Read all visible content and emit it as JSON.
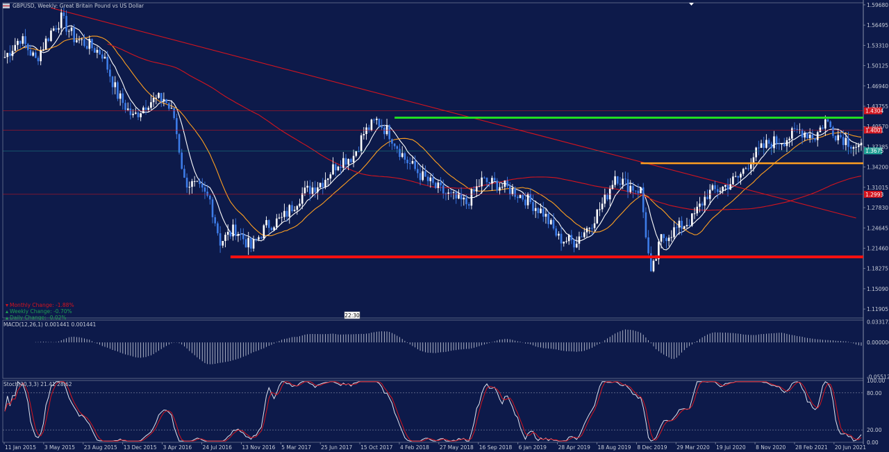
{
  "chart_data": {
    "type": "candlestick",
    "title": "GBPUSD, Weekly: Great Britain Pound vs US Dollar",
    "symbol_icon": "flag-icon",
    "main_panel": {
      "y_ticks": [
        "1.59680",
        "1.56495",
        "1.53310",
        "1.50125",
        "1.46940",
        "1.43755",
        "1.40570",
        "1.37385",
        "1.34200",
        "1.31015",
        "1.27830",
        "1.24645",
        "1.21460",
        "1.18275",
        "1.15090",
        "1.11905"
      ],
      "ylim": [
        1.105,
        1.6
      ],
      "price_tags": [
        {
          "text": "1.4304",
          "value": 1.4304,
          "color": "#d4141e"
        },
        {
          "text": "1.4001",
          "value": 1.4001,
          "color": "#d4141e"
        },
        {
          "text": "1.3675",
          "value": 1.3675,
          "color": "#1f9e94"
        },
        {
          "text": "1.2993",
          "value": 1.2993,
          "color": "#d4141e"
        }
      ],
      "support_line": {
        "value": 1.201,
        "color": "#ff1010"
      },
      "resistance_line": {
        "value": 1.4195,
        "color": "#22dd22"
      },
      "mid_line": {
        "value": 1.348,
        "color": "#ffa020"
      },
      "legend": [
        {
          "text": "Monthly Change: -1.88%",
          "color": "#d4141e",
          "marker": "down"
        },
        {
          "text": "Weekly Change: -0.70%",
          "color": "#1f9e54",
          "marker": "up"
        },
        {
          "text": "Daily Change: -0.02%",
          "color": "#1f9e54",
          "marker": "up"
        }
      ],
      "time_label": "22:30",
      "series": [
        {
          "name": "",
          "color": "#ffffff",
          "type": "sma"
        },
        {
          "name": "",
          "color": "#ffa020",
          "type": "sma"
        },
        {
          "name": "",
          "color": "#d4141e",
          "type": "sma"
        }
      ]
    },
    "macd_panel": {
      "label": "MACD(12,26,1) 0.001441 0.001441",
      "y_ticks": [
        "0.033172",
        "0.000000",
        "-0.055123"
      ],
      "ylim": [
        -0.058,
        0.036
      ]
    },
    "stoch_panel": {
      "label": "Stoch(20,3,3) 21.41 28.62",
      "y_ticks": [
        "100.00",
        "80.00",
        "20.00",
        "0.00"
      ],
      "ylim": [
        0,
        100
      ],
      "levels": [
        80,
        20
      ]
    },
    "x_ticks": [
      "11 Jan 2015",
      "3 May 2015",
      "23 Aug 2015",
      "13 Dec 2015",
      "3 Apr 2016",
      "24 Jul 2016",
      "13 Nov 2016",
      "5 Mar 2017",
      "25 Jun 2017",
      "15 Oct 2017",
      "4 Feb 2018",
      "27 May 2018",
      "16 Sep 2018",
      "6 Jan 2019",
      "28 Apr 2019",
      "18 Aug 2019",
      "8 Dec 2019",
      "29 Mar 2020",
      "19 Jul 2020",
      "8 Nov 2020",
      "28 Feb 2021",
      "20 Jun 2021"
    ],
    "price_path": [
      [
        0,
        1.515
      ],
      [
        6,
        1.545
      ],
      [
        12,
        1.51
      ],
      [
        18,
        1.555
      ],
      [
        22,
        1.575
      ],
      [
        27,
        1.545
      ],
      [
        32,
        1.535
      ],
      [
        38,
        1.52
      ],
      [
        44,
        1.455
      ],
      [
        50,
        1.42
      ],
      [
        56,
        1.445
      ],
      [
        62,
        1.45
      ],
      [
        66,
        1.42
      ],
      [
        70,
        1.32
      ],
      [
        75,
        1.31
      ],
      [
        80,
        1.29
      ],
      [
        84,
        1.225
      ],
      [
        90,
        1.245
      ],
      [
        96,
        1.215
      ],
      [
        102,
        1.25
      ],
      [
        108,
        1.26
      ],
      [
        116,
        1.3
      ],
      [
        124,
        1.32
      ],
      [
        130,
        1.35
      ],
      [
        136,
        1.36
      ],
      [
        140,
        1.395
      ],
      [
        145,
        1.415
      ],
      [
        150,
        1.395
      ],
      [
        156,
        1.355
      ],
      [
        162,
        1.33
      ],
      [
        168,
        1.31
      ],
      [
        174,
        1.295
      ],
      [
        180,
        1.285
      ],
      [
        186,
        1.32
      ],
      [
        192,
        1.315
      ],
      [
        198,
        1.305
      ],
      [
        204,
        1.29
      ],
      [
        210,
        1.27
      ],
      [
        216,
        1.23
      ],
      [
        222,
        1.225
      ],
      [
        228,
        1.25
      ],
      [
        234,
        1.29
      ],
      [
        238,
        1.33
      ],
      [
        242,
        1.315
      ],
      [
        248,
        1.305
      ],
      [
        252,
        1.17
      ],
      [
        256,
        1.23
      ],
      [
        262,
        1.245
      ],
      [
        268,
        1.26
      ],
      [
        274,
        1.3
      ],
      [
        280,
        1.31
      ],
      [
        286,
        1.325
      ],
      [
        292,
        1.36
      ],
      [
        298,
        1.38
      ],
      [
        304,
        1.385
      ],
      [
        310,
        1.4
      ],
      [
        316,
        1.39
      ],
      [
        320,
        1.415
      ],
      [
        324,
        1.395
      ],
      [
        328,
        1.385
      ],
      [
        332,
        1.375
      ],
      [
        334,
        1.37
      ]
    ]
  }
}
